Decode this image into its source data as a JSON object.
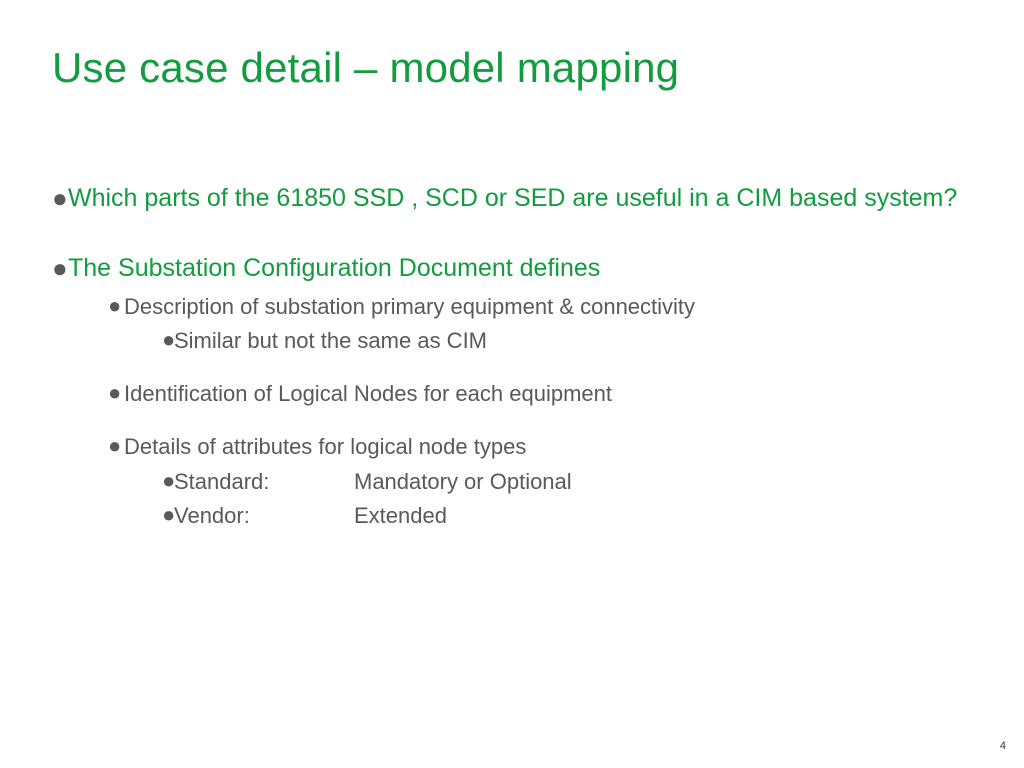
{
  "colors": {
    "accent": "#129c3f",
    "body": "#595959",
    "background": "#ffffff",
    "page_num": "#333333"
  },
  "typography": {
    "title_fontsize": 42,
    "l1_fontsize": 25,
    "l2_fontsize": 22,
    "l3_fontsize": 22,
    "font_family": "Arial"
  },
  "title": "Use case detail – model mapping",
  "bullets": {
    "l1_1": "Which parts of the 61850  SSD , SCD or SED are useful in a CIM based system?",
    "l1_2": "The Substation Configuration Document  defines",
    "l2_1": "Description of substation primary equipment & connectivity",
    "l3_1": "Similar but not the same as CIM",
    "l2_2": "Identification of Logical Nodes for each equipment",
    "l2_3": "Details of attributes for logical node types",
    "l3_2_label": "Standard:",
    "l3_2_value": "Mandatory or Optional",
    "l3_3_label": "Vendor:",
    "l3_3_value": "Extended"
  },
  "page_number": "4",
  "bullet_glyph": "●"
}
